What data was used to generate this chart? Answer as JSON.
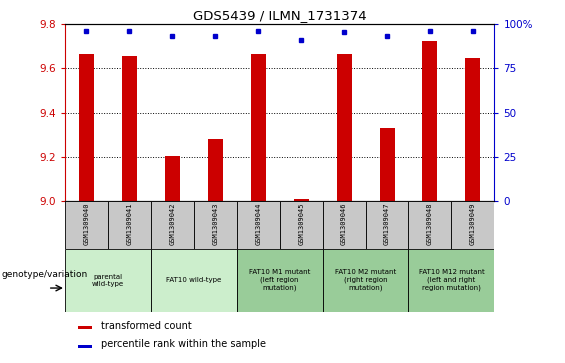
{
  "title": "GDS5439 / ILMN_1731374",
  "categories": [
    "GSM1309040",
    "GSM1309041",
    "GSM1309042",
    "GSM1309043",
    "GSM1309044",
    "GSM1309045",
    "GSM1309046",
    "GSM1309047",
    "GSM1309048",
    "GSM1309049"
  ],
  "red_values": [
    9.665,
    9.655,
    9.205,
    9.28,
    9.665,
    9.01,
    9.665,
    9.33,
    9.72,
    9.645
  ],
  "blue_values": [
    96,
    96,
    93,
    93,
    96,
    91,
    95,
    93,
    96,
    96
  ],
  "ylim_left": [
    9.0,
    9.8
  ],
  "ylim_right": [
    0,
    100
  ],
  "yticks_left": [
    9.0,
    9.2,
    9.4,
    9.6,
    9.8
  ],
  "yticks_right": [
    0,
    25,
    50,
    75,
    100
  ],
  "bar_color": "#cc0000",
  "dot_color": "#0000cc",
  "legend_red": "transformed count",
  "legend_blue": "percentile rank within the sample",
  "genotype_label": "genotype/variation",
  "left_axis_color": "#cc0000",
  "right_axis_color": "#0000cc",
  "bar_width": 0.35,
  "sample_header_color": "#c8c8c8",
  "group_info": [
    {
      "spans": [
        0,
        1
      ],
      "label": "parental\nwild-type",
      "color": "#cceecc"
    },
    {
      "spans": [
        2,
        3
      ],
      "label": "FAT10 wild-type",
      "color": "#cceecc"
    },
    {
      "spans": [
        4,
        5
      ],
      "label": "FAT10 M1 mutant\n(left region\nmutation)",
      "color": "#99cc99"
    },
    {
      "spans": [
        6,
        7
      ],
      "label": "FAT10 M2 mutant\n(right region\nmutation)",
      "color": "#99cc99"
    },
    {
      "spans": [
        8,
        9
      ],
      "label": "FAT10 M12 mutant\n(left and right\nregion mutation)",
      "color": "#99cc99"
    }
  ]
}
